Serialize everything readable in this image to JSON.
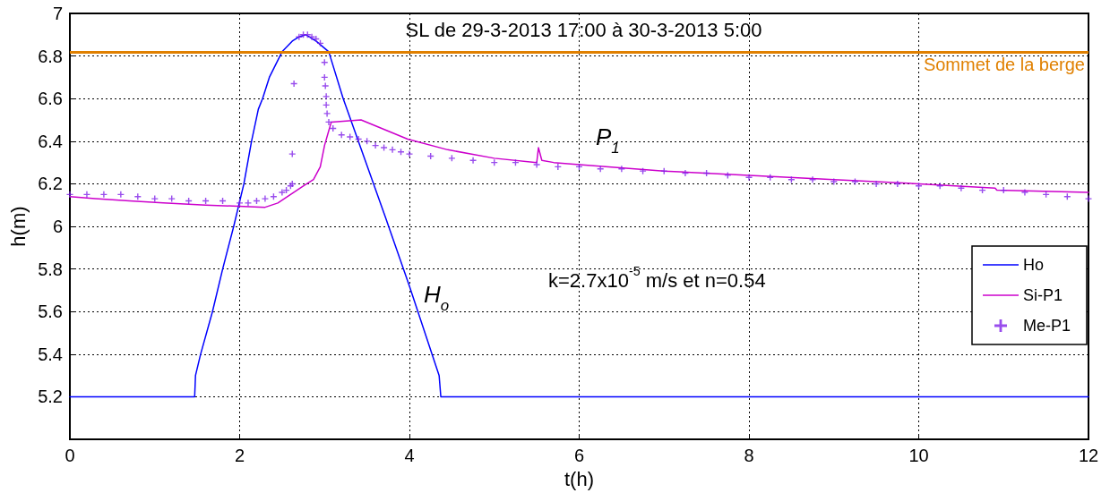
{
  "chart_data": {
    "type": "line",
    "title": "SL de 29-3-2013 17:00 à 30-3-2013 5:00",
    "xlabel": "t(h)",
    "ylabel": "h(m)",
    "xlim": [
      0,
      12
    ],
    "xticks": [
      0,
      2,
      4,
      6,
      8,
      10,
      12
    ],
    "ylim": [
      5,
      7
    ],
    "yticks": [
      5.2,
      5.4,
      5.6,
      5.8,
      6,
      6.2,
      6.4,
      6.6,
      6.8,
      7
    ],
    "grid": true,
    "legend": "bottom right",
    "line_style": "solid",
    "ref_lines": [
      {
        "axis": "y",
        "value": 6.82,
        "label": "Sommet de la berge",
        "color": "#e08000"
      }
    ],
    "annotations": [
      "P$_{1}$",
      "H$_{o}$",
      "k=2.7x10$^{-5}$ m/s et n=0.54"
    ],
    "series": [
      {
        "name": "Ho",
        "marker": "none",
        "color": "#0000ff",
        "x": [
          0,
          1.47,
          1.48,
          1.54,
          1.68,
          1.8,
          1.93,
          2.05,
          2.14,
          2.22,
          2.27,
          2.35,
          2.5,
          2.62,
          2.7,
          2.78,
          2.9,
          3.05,
          3.22,
          3.72,
          4.0,
          4.35,
          4.37,
          12
        ],
        "values": [
          5.2,
          5.2,
          5.3,
          5.4,
          5.6,
          5.8,
          6.0,
          6.2,
          6.4,
          6.55,
          6.6,
          6.7,
          6.82,
          6.87,
          6.89,
          6.9,
          6.87,
          6.82,
          6.6,
          6.04,
          5.72,
          5.3,
          5.2,
          5.2
        ]
      },
      {
        "name": "Si-P1",
        "marker": "none",
        "color": "#cc00cc",
        "x": [
          0,
          0.3,
          0.7,
          1.1,
          1.6,
          2.3,
          2.45,
          2.6,
          2.75,
          2.87,
          2.95,
          3.0,
          3.05,
          3.08,
          3.43,
          3.98,
          4.45,
          5.0,
          5.5,
          5.52,
          5.56,
          5.7,
          6,
          7,
          8,
          9,
          10,
          10.9,
          10.92,
          12
        ],
        "values": [
          6.14,
          6.13,
          6.12,
          6.11,
          6.1,
          6.09,
          6.11,
          6.15,
          6.19,
          6.22,
          6.28,
          6.38,
          6.45,
          6.49,
          6.5,
          6.41,
          6.36,
          6.32,
          6.3,
          6.37,
          6.31,
          6.3,
          6.29,
          6.26,
          6.24,
          6.22,
          6.2,
          6.18,
          6.17,
          6.16
        ]
      },
      {
        "name": "Me-P1",
        "type": "scatter",
        "marker": "cross",
        "color": "#8020e8",
        "x": [
          0,
          0.2,
          0.4,
          0.6,
          0.8,
          1.0,
          1.2,
          1.4,
          1.6,
          1.8,
          2.0,
          2.1,
          2.2,
          2.3,
          2.4,
          2.5,
          2.55,
          2.6,
          2.62,
          2.62,
          2.64,
          2.7,
          2.75,
          2.8,
          2.85,
          2.9,
          2.95,
          3.0,
          3.0,
          3.01,
          3.02,
          3.02,
          3.03,
          3.05,
          3.1,
          3.2,
          3.3,
          3.4,
          3.5,
          3.6,
          3.7,
          3.8,
          3.9,
          4.0,
          4.25,
          4.5,
          4.75,
          5.0,
          5.25,
          5.5,
          5.75,
          6.0,
          6.25,
          6.5,
          6.75,
          7.0,
          7.25,
          7.5,
          7.75,
          8.0,
          8.25,
          8.5,
          8.75,
          9.0,
          9.25,
          9.5,
          9.75,
          10.0,
          10.25,
          10.5,
          10.75,
          11.0,
          11.25,
          11.5,
          11.75,
          12.0
        ],
        "values": [
          6.15,
          6.15,
          6.15,
          6.15,
          6.14,
          6.13,
          6.13,
          6.12,
          6.12,
          6.12,
          6.11,
          6.11,
          6.12,
          6.13,
          6.14,
          6.16,
          6.17,
          6.19,
          6.2,
          6.34,
          6.67,
          6.89,
          6.9,
          6.9,
          6.89,
          6.88,
          6.86,
          6.77,
          6.7,
          6.66,
          6.61,
          6.57,
          6.53,
          6.49,
          6.46,
          6.43,
          6.42,
          6.41,
          6.4,
          6.38,
          6.37,
          6.36,
          6.35,
          6.34,
          6.33,
          6.32,
          6.31,
          6.3,
          6.3,
          6.29,
          6.28,
          6.28,
          6.27,
          6.27,
          6.26,
          6.26,
          6.25,
          6.25,
          6.24,
          6.23,
          6.23,
          6.22,
          6.22,
          6.21,
          6.21,
          6.2,
          6.2,
          6.19,
          6.19,
          6.18,
          6.17,
          6.17,
          6.16,
          6.15,
          6.14,
          6.13
        ]
      }
    ]
  }
}
